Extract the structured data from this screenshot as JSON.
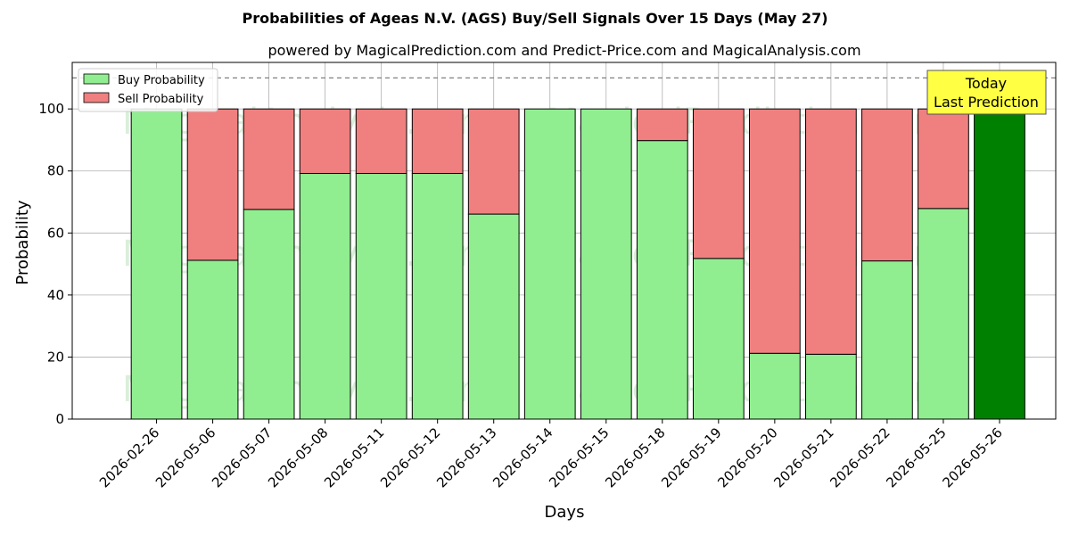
{
  "chart_data": {
    "type": "bar",
    "stacked": true,
    "title": "Probabilities of Ageas N.V. (AGS) Buy/Sell Signals Over 15 Days (May 27)",
    "subtitle": "powered by MagicalPrediction.com and Predict-Price.com and MagicalAnalysis.com",
    "xlabel": "Days",
    "ylabel": "Probability",
    "ylim": [
      0,
      115
    ],
    "yticks": [
      0,
      20,
      40,
      60,
      80,
      100
    ],
    "grid": true,
    "legend_position": "top-left",
    "threshold_line": 110,
    "categories": [
      "2026-02-26",
      "2026-05-06",
      "2026-05-07",
      "2026-05-08",
      "2026-05-11",
      "2026-05-12",
      "2026-05-13",
      "2026-05-14",
      "2026-05-15",
      "2026-05-18",
      "2026-05-19",
      "2026-05-20",
      "2026-05-21",
      "2026-05-22",
      "2026-05-25",
      "2026-05-26"
    ],
    "series": [
      {
        "name": "Buy Probability",
        "color": "#90ee90",
        "values": [
          100,
          51.2,
          67.6,
          79.2,
          79.2,
          79.2,
          66.1,
          100,
          100,
          89.8,
          51.8,
          21.2,
          20.9,
          51.0,
          67.9,
          100
        ]
      },
      {
        "name": "Sell Probability",
        "color": "#f08080",
        "values": [
          0,
          48.8,
          32.4,
          20.8,
          20.8,
          20.8,
          33.9,
          0,
          0,
          10.2,
          48.2,
          78.8,
          79.1,
          49.0,
          32.1,
          0
        ]
      }
    ],
    "highlight": {
      "index": 15,
      "color": "#008000",
      "label_line1": "Today",
      "label_line2": "Last Prediction",
      "box_color": "#ffff44"
    },
    "watermarks": [
      "MagicalAnalysis.com",
      "MagicalPrediction.com"
    ]
  }
}
